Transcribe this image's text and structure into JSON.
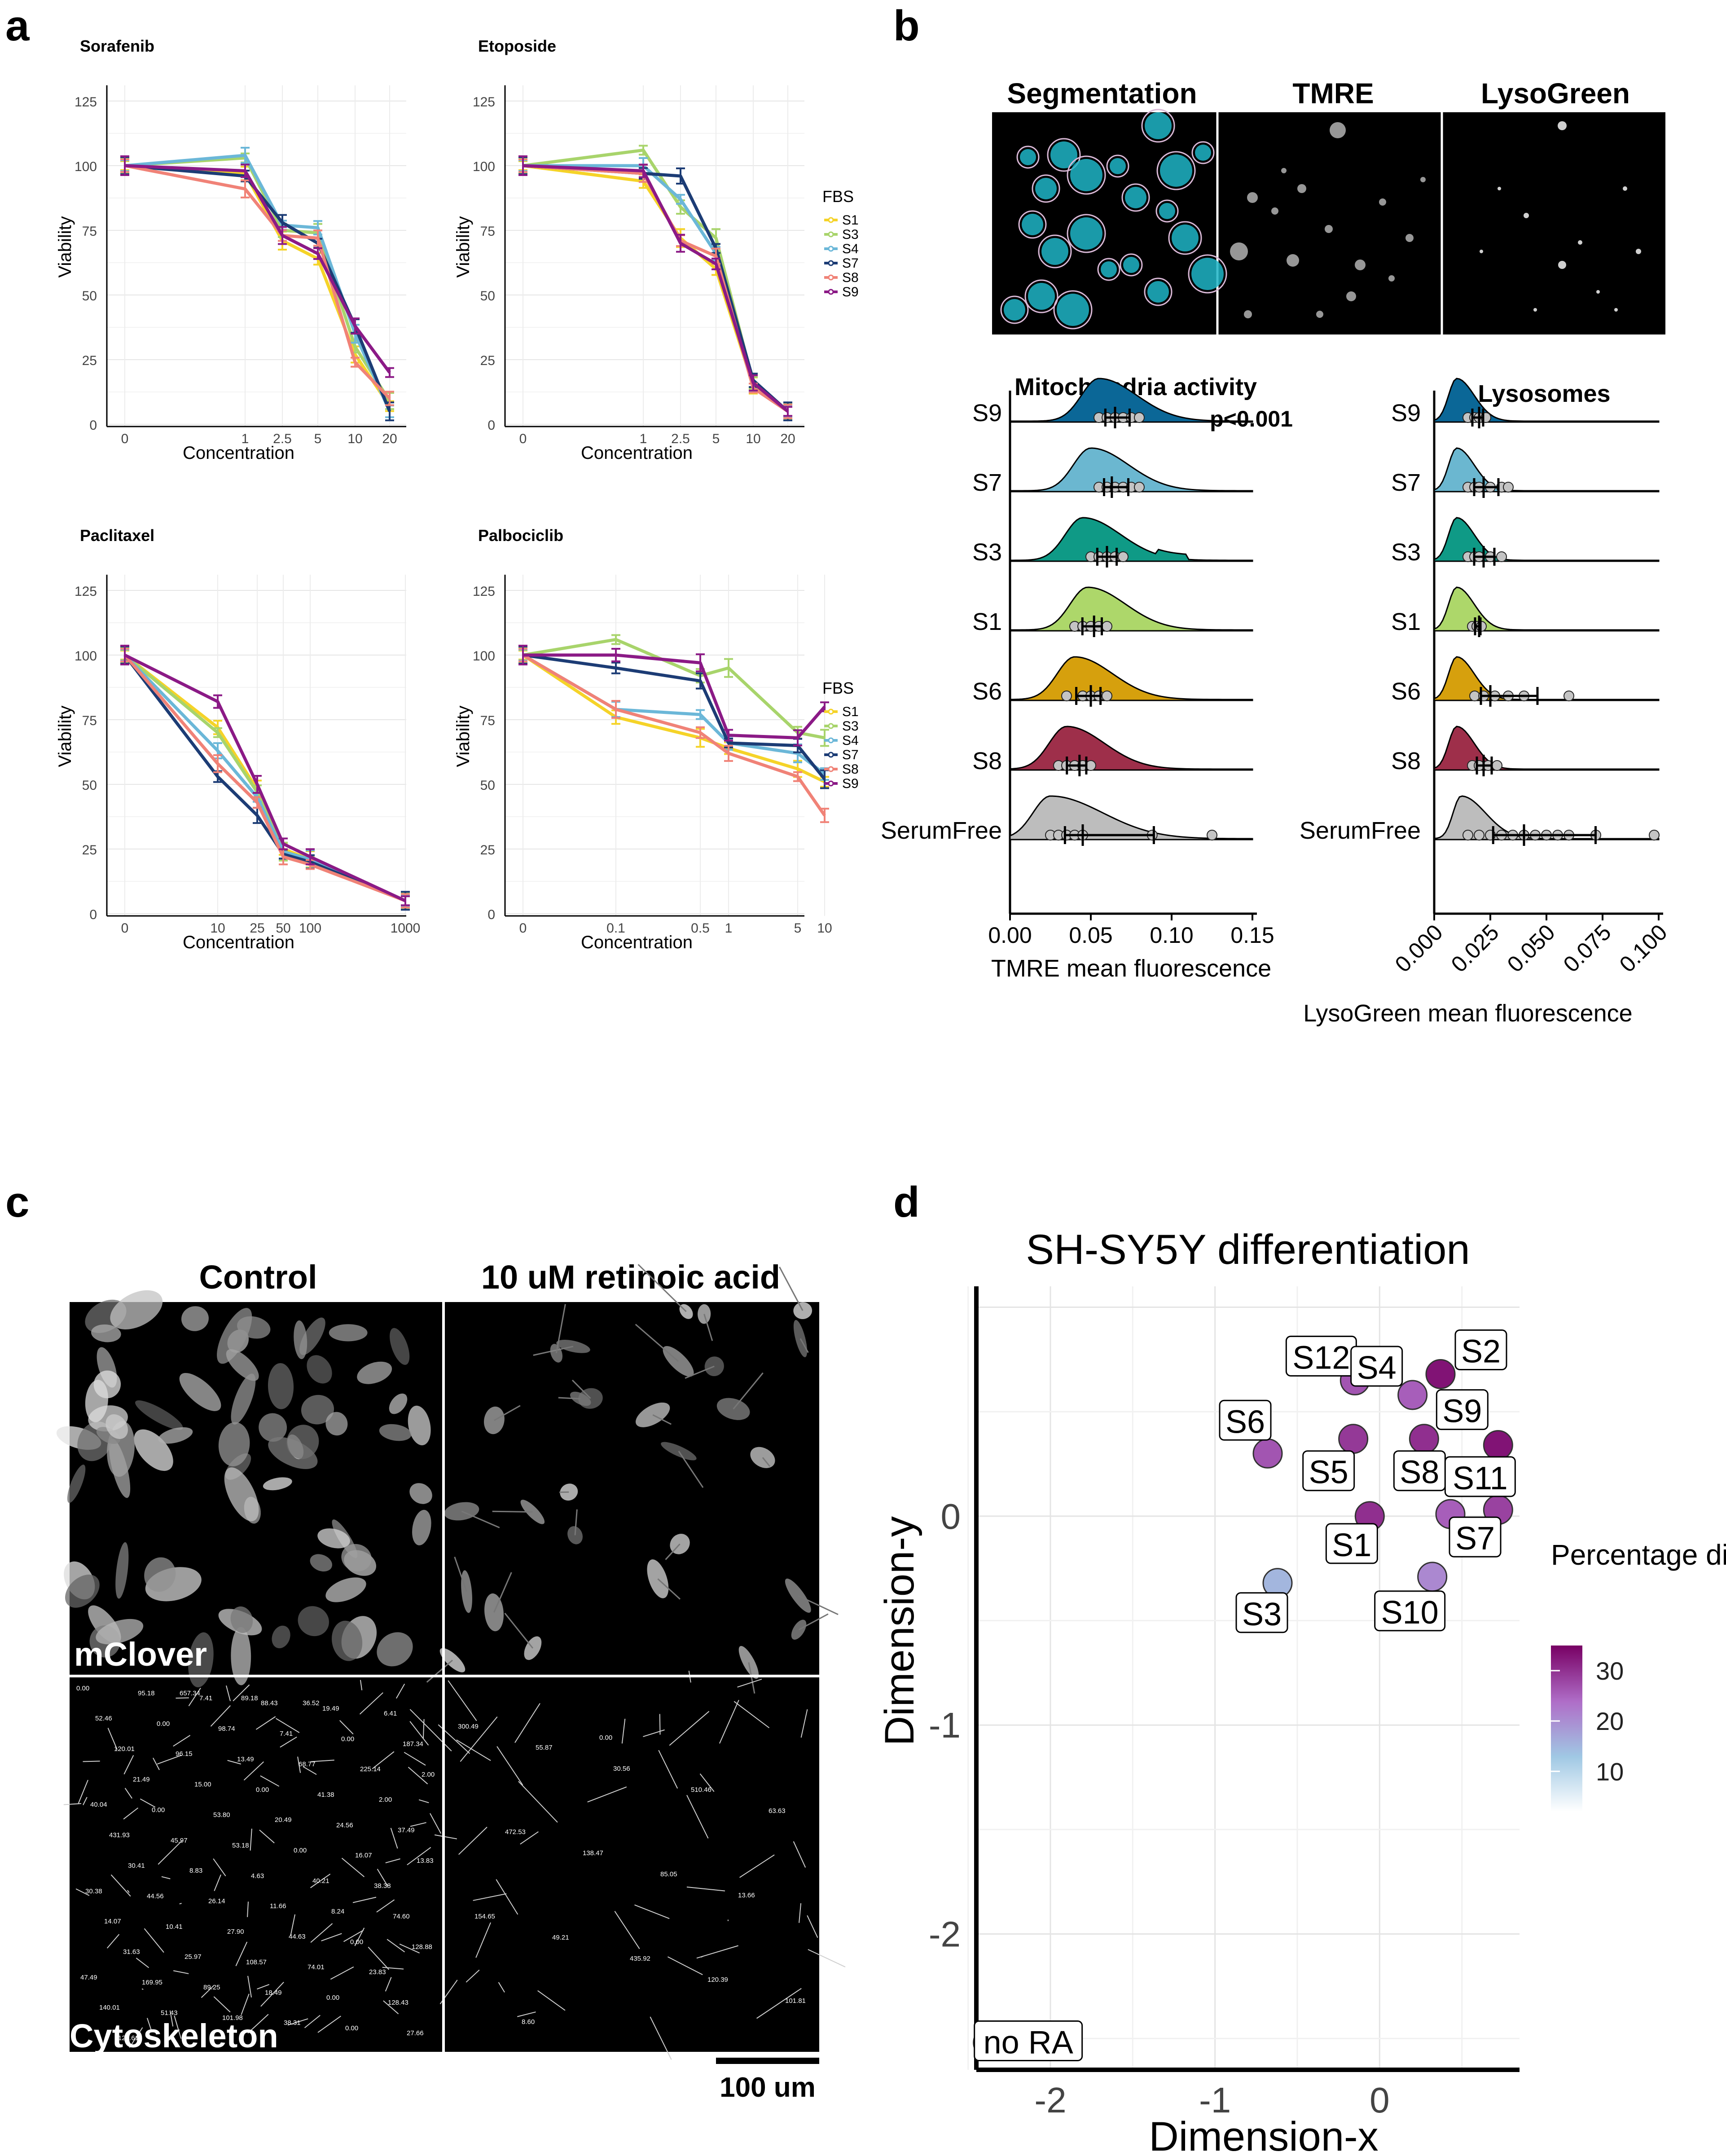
{
  "panel_labels": {
    "a": "a",
    "b": "b",
    "c": "c",
    "d": "d"
  },
  "colors": {
    "S1": "#f5d328",
    "S3": "#a8d46b",
    "S4": "#6bb7d8",
    "S7": "#1c3c75",
    "S8": "#f08277",
    "S9": "#8b1a86",
    "S6": "#d6a00d",
    "S8b": "#9e2f4a",
    "SerumFree": "#bdbdbd",
    "S9b": "#0b6797",
    "S7b": "#6bb7d0",
    "S3b": "#0f9a86",
    "S1b": "#add76a"
  },
  "panel_a": {
    "legend_title": "FBS",
    "legend_items": [
      "S1",
      "S3",
      "S4",
      "S7",
      "S8",
      "S9"
    ],
    "y_axis_label": "Viability",
    "x_axis_label": "Concentration",
    "y_ticks": [
      "0",
      "25",
      "50",
      "75",
      "100",
      "125"
    ]
  },
  "panel_b": {
    "image_titles": [
      "Segmentation",
      "TMRE",
      "LysoGreen"
    ],
    "ridge_left_title": "Mitochondria activity",
    "ridge_left_p": "p<0.001",
    "ridge_left_xlabel": "TMRE mean fluorescence",
    "ridge_left_ticks": [
      "0.00",
      "0.05",
      "0.10",
      "0.15"
    ],
    "ridge_right_title": "Lysosomes",
    "ridge_right_xlabel": "LysoGreen mean fluorescence",
    "ridge_right_ticks": [
      "0.000",
      "0.025",
      "0.050",
      "0.075",
      "0.100"
    ],
    "groups": [
      "S9",
      "S7",
      "S3",
      "S1",
      "S6",
      "S8",
      "SerumFree"
    ]
  },
  "panel_c": {
    "col_titles": [
      "Control",
      "10 uM retinoic acid"
    ],
    "row_labels": [
      "mClover",
      "Cytoskeleton"
    ],
    "scale_bar": "100 um",
    "control_values": [
      "0.00",
      "95.18",
      "7.41",
      "88.43",
      "19.49",
      "6.41",
      "52.46",
      "0.00",
      "98.74",
      "7.41",
      "0.00",
      "187.34",
      "120.01",
      "96.15",
      "13.49",
      "68.77",
      "225.14",
      "2.00",
      "21.49",
      "15.00",
      "0.00",
      "41.38",
      "2.00",
      "40.04",
      "0.00",
      "53.80",
      "20.49",
      "24.56",
      "37.49",
      "431.93",
      "45.97",
      "53.18",
      "0.00",
      "16.07",
      "13.83",
      "30.41",
      "8.83",
      "4.63",
      "40.21",
      "38.38",
      "30.38",
      "44.56",
      "26.14",
      "11.66",
      "8.24",
      "74.60",
      "14.07",
      "10.41",
      "27.90",
      "44.63",
      "0.00",
      "128.88",
      "31.63",
      "25.97",
      "108.57",
      "74.01",
      "23.83",
      "47.49",
      "169.95",
      "89.25",
      "18.49",
      "0.00",
      "128.43",
      "140.01",
      "51.43",
      "101.98",
      "38.31",
      "0.00",
      "27.66",
      "123.61",
      "657.34",
      "89.18",
      "36.52"
    ],
    "ra_values": [
      "300.49",
      "55.87",
      "30.56",
      "510.46",
      "63.63",
      "472.53",
      "138.47",
      "85.05",
      "13.66",
      "154.65",
      "49.21",
      "435.92",
      "120.39",
      "101.81",
      "8.60",
      "0.00"
    ]
  },
  "chart_data": [
    {
      "type": "line",
      "title": "Sorafenib",
      "xlabel": "Concentration",
      "ylabel": "Viability",
      "categories": [
        "0",
        "1",
        "2.5",
        "5",
        "10",
        "20"
      ],
      "ylim": [
        0,
        125
      ],
      "series": [
        {
          "name": "S1",
          "values": [
            100,
            97,
            71,
            64,
            27,
            7
          ]
        },
        {
          "name": "S3",
          "values": [
            100,
            103,
            75,
            74,
            30,
            9
          ]
        },
        {
          "name": "S4",
          "values": [
            100,
            104,
            77,
            76,
            35,
            5
          ]
        },
        {
          "name": "S7",
          "values": [
            100,
            96,
            78,
            70,
            38,
            5
          ]
        },
        {
          "name": "S8",
          "values": [
            100,
            91,
            73,
            72,
            24,
            10
          ]
        },
        {
          "name": "S9",
          "values": [
            100,
            98,
            73,
            66,
            38,
            20
          ]
        }
      ]
    },
    {
      "type": "line",
      "title": "Etoposide",
      "xlabel": "Concentration",
      "ylabel": "Viability",
      "categories": [
        "0",
        "1",
        "2.5",
        "5",
        "10",
        "20"
      ],
      "ylim": [
        0,
        125
      ],
      "series": [
        {
          "name": "S1",
          "values": [
            100,
            94,
            72,
            60,
            15,
            5
          ]
        },
        {
          "name": "S3",
          "values": [
            100,
            106,
            84,
            72,
            16,
            5
          ]
        },
        {
          "name": "S4",
          "values": [
            100,
            100,
            87,
            66,
            16,
            5
          ]
        },
        {
          "name": "S7",
          "values": [
            100,
            97,
            96,
            68,
            17,
            5
          ]
        },
        {
          "name": "S8",
          "values": [
            100,
            97,
            71,
            65,
            14,
            5
          ]
        },
        {
          "name": "S9",
          "values": [
            100,
            98,
            70,
            62,
            16,
            5
          ]
        }
      ]
    },
    {
      "type": "line",
      "title": "Paclitaxel",
      "xlabel": "Concentration",
      "ylabel": "Viability",
      "categories": [
        "0",
        "10",
        "25",
        "50",
        "100",
        "1000"
      ],
      "ylim": [
        0,
        125
      ],
      "series": [
        {
          "name": "S1",
          "values": [
            100,
            72,
            48,
            25,
            21,
            5
          ]
        },
        {
          "name": "S3",
          "values": [
            100,
            70,
            47,
            24,
            20,
            5
          ]
        },
        {
          "name": "S4",
          "values": [
            100,
            63,
            45,
            24,
            21,
            5
          ]
        },
        {
          "name": "S7",
          "values": [
            100,
            53,
            38,
            23,
            20,
            5
          ]
        },
        {
          "name": "S8",
          "values": [
            100,
            58,
            43,
            22,
            19,
            5
          ]
        },
        {
          "name": "S9",
          "values": [
            100,
            82,
            50,
            27,
            22,
            5
          ]
        }
      ]
    },
    {
      "type": "line",
      "title": "Palbociclib",
      "xlabel": "Concentration",
      "ylabel": "Viability",
      "categories": [
        "0",
        "0.1",
        "0.5",
        "1",
        "5",
        "10"
      ],
      "ylim": [
        0,
        125
      ],
      "series": [
        {
          "name": "S1",
          "values": [
            100,
            76,
            68,
            64,
            56,
            51
          ]
        },
        {
          "name": "S3",
          "values": [
            100,
            106,
            92,
            95,
            70,
            68
          ]
        },
        {
          "name": "S4",
          "values": [
            100,
            79,
            77,
            66,
            62,
            54
          ]
        },
        {
          "name": "S7",
          "values": [
            100,
            95,
            90,
            66,
            65,
            52
          ]
        },
        {
          "name": "S8",
          "values": [
            100,
            79,
            70,
            62,
            53,
            38
          ]
        },
        {
          "name": "S9",
          "values": [
            100,
            100,
            97,
            69,
            68,
            80
          ]
        }
      ]
    },
    {
      "type": "scatter",
      "title": "SH-SY5Y differentiation",
      "xlabel": "Dimension-x",
      "ylabel": "Dimension-y",
      "xlim": [
        -2.45,
        0.85
      ],
      "ylim": [
        -2.65,
        1.1
      ],
      "x_ticks": [
        "-2",
        "-1",
        "0"
      ],
      "y_ticks": [
        "0",
        "-1",
        "-2"
      ],
      "legend_title": "Percentage differentiated cells",
      "legend_ticks": [
        "30",
        "20",
        "10"
      ],
      "points": [
        {
          "label": "S2",
          "x": 0.37,
          "y": 0.68,
          "value": 33
        },
        {
          "label": "S12",
          "x": -0.15,
          "y": 0.65,
          "value": 26
        },
        {
          "label": "S4",
          "x": 0.2,
          "y": 0.58,
          "value": 25
        },
        {
          "label": "S9",
          "x": 0.72,
          "y": 0.34,
          "value": 33
        },
        {
          "label": "S6",
          "x": -0.68,
          "y": 0.3,
          "value": 26
        },
        {
          "label": "S5",
          "x": -0.16,
          "y": 0.37,
          "value": 29
        },
        {
          "label": "S8",
          "x": 0.27,
          "y": 0.37,
          "value": 30
        },
        {
          "label": "S11",
          "x": 0.72,
          "y": 0.03,
          "value": 28
        },
        {
          "label": "S1",
          "x": -0.06,
          "y": 0.0,
          "value": 30
        },
        {
          "label": "S7",
          "x": 0.43,
          "y": 0.01,
          "value": 25
        },
        {
          "label": "S3",
          "x": -0.62,
          "y": -0.32,
          "value": 14
        },
        {
          "label": "S10",
          "x": 0.32,
          "y": -0.29,
          "value": 20
        },
        {
          "label": "no RA",
          "x": -2.38,
          "y": -2.52,
          "value": 2
        }
      ]
    },
    {
      "type": "ridgeline",
      "title": "Mitochondria activity",
      "xlabel": "TMRE mean fluorescence",
      "xlim": [
        0,
        0.15
      ],
      "groups": [
        "S9",
        "S7",
        "S3",
        "S1",
        "S6",
        "S8",
        "SerumFree"
      ],
      "modes": [
        0.055,
        0.05,
        0.045,
        0.048,
        0.04,
        0.035,
        0.025
      ],
      "means": [
        0.065,
        0.063,
        0.06,
        0.052,
        0.05,
        0.043,
        0.045
      ],
      "points": [
        [
          0.055,
          0.06,
          0.065,
          0.07,
          0.075,
          0.08
        ],
        [
          0.055,
          0.06,
          0.065,
          0.07,
          0.075,
          0.08
        ],
        [
          0.05,
          0.055,
          0.06,
          0.065,
          0.07
        ],
        [
          0.04,
          0.045,
          0.05,
          0.055,
          0.06
        ],
        [
          0.035,
          0.045,
          0.05,
          0.055,
          0.06
        ],
        [
          0.03,
          0.035,
          0.04,
          0.045,
          0.05
        ],
        [
          0.025,
          0.03,
          0.035,
          0.04,
          0.045,
          0.088,
          0.125
        ]
      ]
    },
    {
      "type": "ridgeline",
      "title": "Lysosomes",
      "xlabel": "LysoGreen mean fluorescence",
      "xlim": [
        0,
        0.1
      ],
      "groups": [
        "S9",
        "S7",
        "S3",
        "S1",
        "S6",
        "S8",
        "SerumFree"
      ],
      "modes": [
        0.01,
        0.01,
        0.01,
        0.01,
        0.01,
        0.01,
        0.012
      ],
      "means": [
        0.02,
        0.022,
        0.022,
        0.02,
        0.025,
        0.022,
        0.04
      ],
      "points": [
        [
          0.015,
          0.018,
          0.02,
          0.023
        ],
        [
          0.015,
          0.018,
          0.02,
          0.025,
          0.03,
          0.033
        ],
        [
          0.015,
          0.018,
          0.02,
          0.025,
          0.03
        ],
        [
          0.017,
          0.019,
          0.021
        ],
        [
          0.018,
          0.022,
          0.027,
          0.033,
          0.04,
          0.06
        ],
        [
          0.017,
          0.02,
          0.024,
          0.028
        ],
        [
          0.015,
          0.02,
          0.025,
          0.03,
          0.035,
          0.04,
          0.045,
          0.05,
          0.055,
          0.06,
          0.072,
          0.098
        ]
      ]
    }
  ]
}
